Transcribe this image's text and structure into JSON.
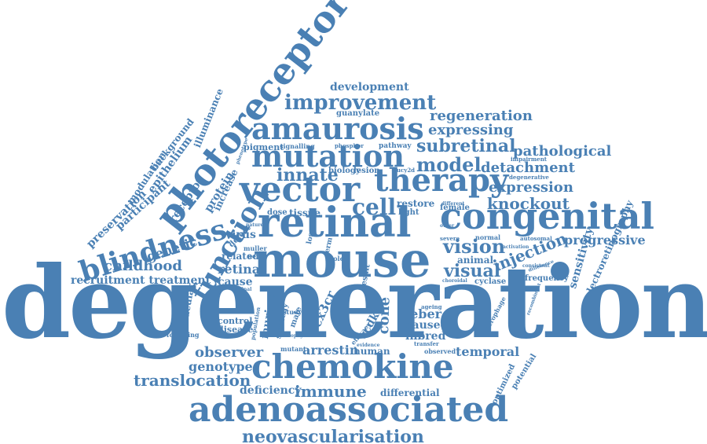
{
  "cloud": {
    "color": "#4a80b4",
    "words": {
      "degeneration": "degeneration",
      "mouse": "mouse",
      "retinal": "retinal",
      "congenital": "congenital",
      "vector": "vector",
      "therapy": "therapy",
      "chemokine": "chemokine",
      "adenoassociated": "adenoassociated",
      "photoreceptor": "photoreceptor",
      "amaurosis": "amaurosis",
      "mutation": "mutation",
      "function": "function",
      "blindness": "blindness",
      "improvement": "improvement",
      "neovascularisation": "neovascularisation",
      "translocation": "translocation",
      "immune": "immune",
      "cell": "cell",
      "model": "model",
      "subretinal": "subretinal",
      "innate": "innate",
      "expressing": "expressing",
      "regeneration": "regeneration",
      "pathological": "pathological",
      "detachment": "detachment",
      "expression": "expression",
      "knockout": "knockout",
      "vision": "vision",
      "visual": "visual",
      "injection": "injection",
      "progressive": "progressive",
      "development": "development",
      "guanylate": "guanylate",
      "childhood": "childhood",
      "genetic": "genetic",
      "recruitment_treatment": "recruitment treatment",
      "observer": "observer",
      "genotype": "genotype",
      "deficiency": "deficiency",
      "differential": "differential",
      "temporal": "temporal",
      "arrestin": "arrestin",
      "human": "human",
      "leber": "leber",
      "caused": "caused",
      "inbred": "inbred",
      "cone": "cone",
      "cxcr": "cx3cr",
      "ccdko": "ccdko",
      "control": "control",
      "disease": "disease",
      "murine": "murine",
      "retina": "retina",
      "cause": "cause",
      "related": "related",
      "virus": "virus",
      "defect": "defect",
      "macular": "macular",
      "sensitivity": "sensitivity",
      "electroretinography": "electroretinography",
      "frequency": "frequency",
      "optimized": "optimized",
      "potential": "potential",
      "animal": "animal",
      "female": "female",
      "restore": "restore",
      "light": "light",
      "tissue": "tissue",
      "dose": "dose",
      "lesion": "lesion",
      "biology": "biology",
      "pigment": "pigment",
      "signalling": "signalling",
      "phosphor": "phosphor",
      "pathway": "pathway",
      "increase": "increase",
      "protein": "protein",
      "receptor": "receptor",
      "illuminance": "illuminance",
      "background": "background",
      "epithelium": "epithelium",
      "modulation": "modulation",
      "participant": "participant",
      "preservation": "preservation",
      "following": "following",
      "mutant": "mutant",
      "observed": "observed",
      "cyclase": "cyclase",
      "normal": "normal",
      "autosomal": "autosomal",
      "severe": "severe",
      "impairment": "impairment",
      "degenerative": "degenerative",
      "result": "result",
      "strategy": "strategy",
      "male": "male",
      "study": "study",
      "atrophy": "atrophy",
      "evidence": "evidence",
      "transfer": "transfer",
      "ageing": "ageing",
      "recombinant": "recombinant",
      "macrophage": "macrophage",
      "gucy2d": "gucy2d",
      "nerve": "nerve",
      "muller": "muller",
      "role": "role",
      "loss": "loss",
      "nature": "nature",
      "outer": "outer",
      "different": "different",
      "activation": "activation",
      "consistent": "consistent",
      "difference": "difference",
      "phenotype": "phenotype",
      "efficacy": "efficacy",
      "population": "population",
      "original": "original",
      "term": "term",
      "choroidal": "choroidal"
    }
  }
}
